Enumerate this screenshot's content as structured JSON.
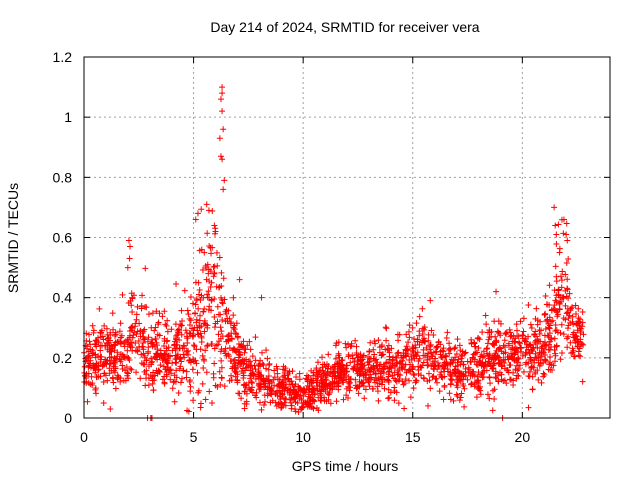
{
  "chart_data": {
    "type": "scatter",
    "title": "Day 214 of 2024, SRMTID for receiver vera",
    "xlabel": "GPS time / hours",
    "ylabel": "SRMTID / TECUs",
    "xlim": [
      0,
      24
    ],
    "ylim": [
      0,
      1.2
    ],
    "xticks": [
      0,
      5,
      10,
      15,
      20
    ],
    "xtick_labels": [
      "0",
      "5",
      "10",
      "15",
      "20"
    ],
    "yticks": [
      0,
      0.2,
      0.4,
      0.6,
      0.8,
      1.0,
      1.2
    ],
    "ytick_labels": [
      "0",
      "0.2",
      "0.4",
      "0.6",
      "0.8",
      "1",
      "1.2"
    ],
    "grid": true,
    "marker": "+",
    "color": "#ff0000",
    "series": [
      {
        "name": "SRMTID",
        "profile": {
          "x": [
            0.0,
            0.5,
            1.0,
            1.5,
            2.0,
            2.2,
            2.5,
            3.0,
            3.5,
            4.0,
            4.5,
            5.0,
            5.3,
            5.6,
            5.9,
            6.2,
            6.5,
            7.0,
            7.5,
            8.0,
            8.5,
            9.0,
            9.5,
            10.0,
            10.5,
            11.0,
            11.5,
            12.0,
            13.0,
            14.0,
            15.0,
            15.5,
            16.0,
            17.0,
            18.0,
            18.5,
            19.0,
            19.5,
            20.0,
            20.5,
            21.0,
            21.5,
            21.8,
            22.0,
            22.3,
            22.8
          ],
          "median": [
            0.18,
            0.19,
            0.22,
            0.21,
            0.2,
            0.3,
            0.3,
            0.22,
            0.2,
            0.2,
            0.24,
            0.26,
            0.32,
            0.36,
            0.38,
            0.32,
            0.26,
            0.2,
            0.15,
            0.12,
            0.11,
            0.1,
            0.09,
            0.08,
            0.1,
            0.12,
            0.15,
            0.16,
            0.16,
            0.17,
            0.2,
            0.22,
            0.19,
            0.16,
            0.17,
            0.19,
            0.2,
            0.2,
            0.22,
            0.22,
            0.23,
            0.32,
            0.42,
            0.38,
            0.28,
            0.27
          ],
          "spread": [
            0.05,
            0.05,
            0.06,
            0.06,
            0.06,
            0.09,
            0.08,
            0.07,
            0.06,
            0.06,
            0.07,
            0.09,
            0.12,
            0.14,
            0.16,
            0.14,
            0.09,
            0.06,
            0.05,
            0.04,
            0.04,
            0.03,
            0.03,
            0.03,
            0.04,
            0.04,
            0.04,
            0.04,
            0.04,
            0.05,
            0.06,
            0.07,
            0.05,
            0.05,
            0.05,
            0.06,
            0.05,
            0.05,
            0.06,
            0.06,
            0.06,
            0.1,
            0.12,
            0.11,
            0.05,
            0.04
          ]
        },
        "n_points": 2300,
        "peaks": [
          {
            "x": 6.3,
            "y": 1.1
          },
          {
            "x": 6.3,
            "y": 1.08
          },
          {
            "x": 6.25,
            "y": 1.06
          },
          {
            "x": 6.3,
            "y": 1.02
          },
          {
            "x": 6.35,
            "y": 0.96
          },
          {
            "x": 6.2,
            "y": 0.93
          },
          {
            "x": 6.25,
            "y": 0.87
          },
          {
            "x": 6.3,
            "y": 0.86
          },
          {
            "x": 6.4,
            "y": 0.79
          },
          {
            "x": 6.35,
            "y": 0.76
          },
          {
            "x": 5.2,
            "y": 0.68
          },
          {
            "x": 5.1,
            "y": 0.66
          },
          {
            "x": 5.6,
            "y": 0.71
          },
          {
            "x": 5.7,
            "y": 0.69
          },
          {
            "x": 5.95,
            "y": 0.64
          },
          {
            "x": 6.0,
            "y": 0.62
          },
          {
            "x": 2.05,
            "y": 0.59
          },
          {
            "x": 2.1,
            "y": 0.57
          },
          {
            "x": 2.08,
            "y": 0.53
          },
          {
            "x": 2.0,
            "y": 0.5
          },
          {
            "x": 21.45,
            "y": 0.7
          },
          {
            "x": 21.5,
            "y": 0.64
          },
          {
            "x": 21.55,
            "y": 0.61
          },
          {
            "x": 21.9,
            "y": 0.66
          },
          {
            "x": 22.0,
            "y": 0.61
          },
          {
            "x": 22.05,
            "y": 0.59
          },
          {
            "x": 21.7,
            "y": 0.55
          },
          {
            "x": 2.9,
            "y": 0.0
          },
          {
            "x": 3.05,
            "y": 0.0
          },
          {
            "x": 3.1,
            "y": 0.0
          },
          {
            "x": 19.1,
            "y": 0.0
          },
          {
            "x": 0.9,
            "y": 0.05
          },
          {
            "x": 1.2,
            "y": 0.03
          },
          {
            "x": 8.1,
            "y": 0.4
          },
          {
            "x": 15.8,
            "y": 0.39
          },
          {
            "x": 18.8,
            "y": 0.42
          },
          {
            "x": 7.1,
            "y": 0.46
          }
        ]
      }
    ]
  }
}
